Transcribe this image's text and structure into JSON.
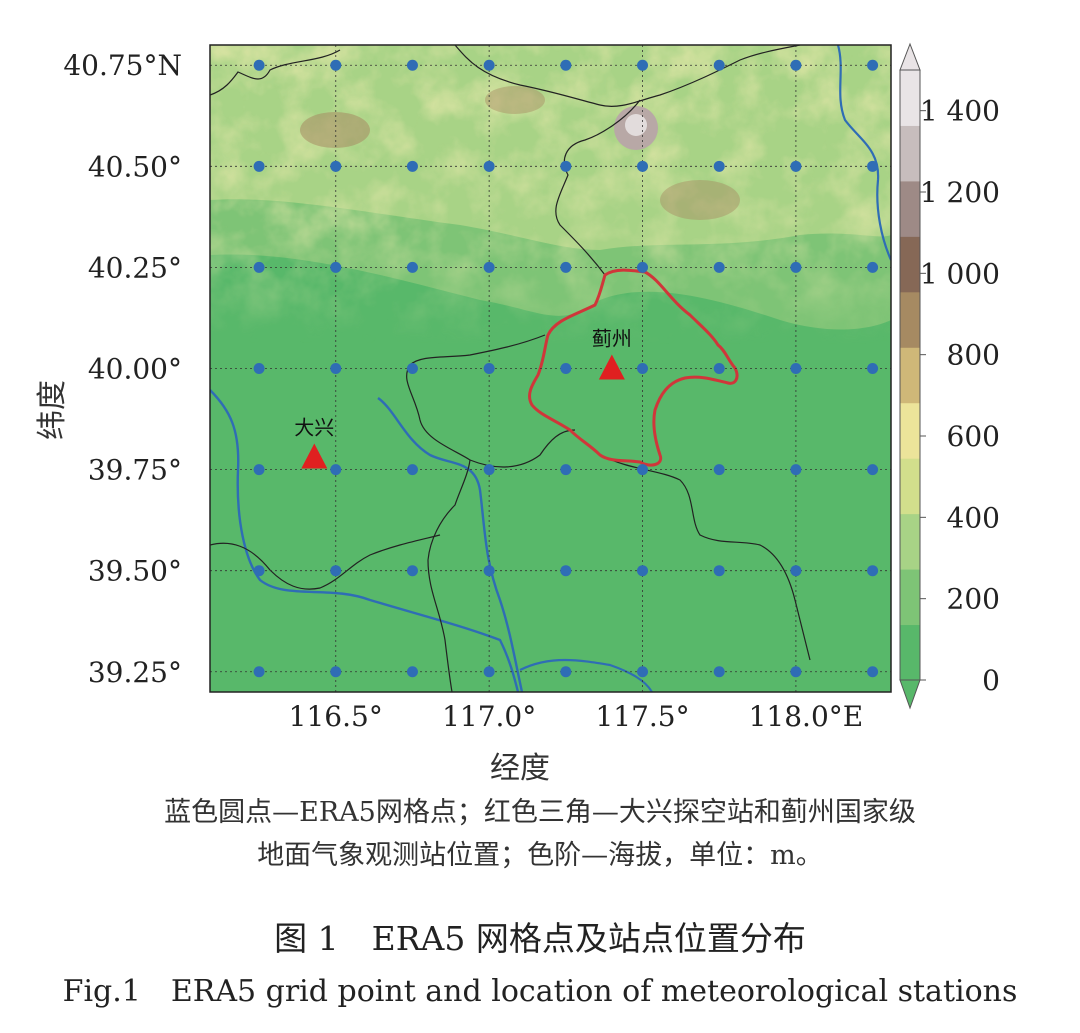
{
  "map": {
    "lat_ticks": [
      {
        "value": 40.75,
        "label": "40.75°N"
      },
      {
        "value": 40.5,
        "label": "40.50°"
      },
      {
        "value": 40.25,
        "label": "40.25°"
      },
      {
        "value": 40.0,
        "label": "40.00°"
      },
      {
        "value": 39.75,
        "label": "39.75°"
      },
      {
        "value": 39.5,
        "label": "39.50°"
      },
      {
        "value": 39.25,
        "label": "39.25°"
      }
    ],
    "lon_ticks": [
      {
        "value": 116.5,
        "label": "116.5°"
      },
      {
        "value": 117.0,
        "label": "117.0°"
      },
      {
        "value": 117.5,
        "label": "117.5°"
      },
      {
        "value": 118.0,
        "label": "118.0°E"
      }
    ],
    "xlabel": "经度",
    "ylabel": "纬度",
    "lon_range": [
      116.09,
      118.31
    ],
    "lat_range": [
      39.2,
      40.8
    ],
    "grid_points": {
      "lons": [
        116.25,
        116.5,
        116.75,
        117.0,
        117.25,
        117.5,
        117.75,
        118.0,
        118.25
      ],
      "lats": [
        40.75,
        40.5,
        40.25,
        40.0,
        39.75,
        39.5,
        39.25
      ],
      "color": "#2f6db5"
    },
    "stations": [
      {
        "name": "大兴",
        "lon": 116.43,
        "lat": 39.78,
        "color": "#e02020"
      },
      {
        "name": "蓟州",
        "lon": 117.4,
        "lat": 40.0,
        "color": "#e02020"
      }
    ],
    "colorbar": {
      "ticks": [
        0,
        200,
        400,
        600,
        800,
        1000,
        1200,
        1400
      ],
      "tick_labels": [
        "0",
        "200",
        "400",
        "600",
        "800",
        "1 000",
        "1 200",
        "1 400"
      ],
      "range": [
        0,
        1500
      ],
      "colors": [
        "#58b86a",
        "#7ec476",
        "#a8d386",
        "#d2df8c",
        "#ece49a",
        "#cfb878",
        "#a68a62",
        "#866856",
        "#9e8a86",
        "#c7bdbd",
        "#e9e4e6"
      ]
    }
  },
  "captions": {
    "note_line1": "蓝色圆点—ERA5网格点；红色三角—大兴探空站和蓟州国家级",
    "note_line2": "地面气象观测站位置；色阶—海拔，单位：m。",
    "title_cn": "图 1　ERA5 网格点及站点位置分布",
    "title_en": "Fig.1　ERA5 grid point and location of meteorological stations"
  }
}
